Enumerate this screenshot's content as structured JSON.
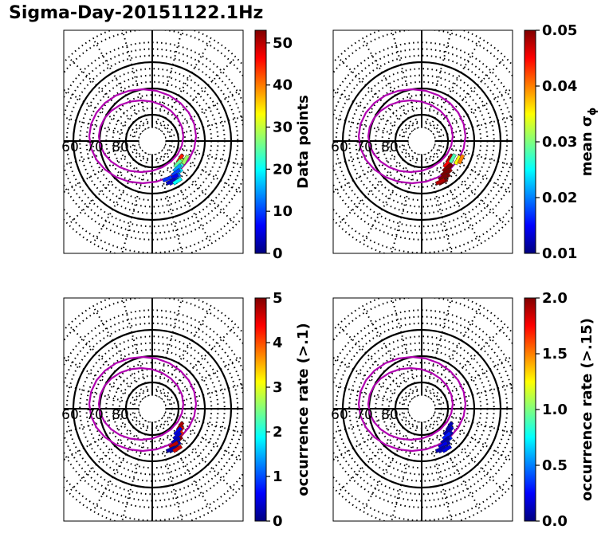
{
  "title": "Sigma-Day-20151122.1Hz",
  "chart_data": [
    {
      "type": "polar-map",
      "position": "top-left",
      "lat_labels": [
        "60",
        "70",
        "80"
      ],
      "lat_rings_deg": [
        60,
        70,
        80
      ],
      "colorbar": {
        "label": "Data points",
        "min": 0,
        "max": 53,
        "ticks": [
          "0",
          "10",
          "20",
          "30",
          "40",
          "50"
        ],
        "tick_values": [
          0,
          10,
          20,
          30,
          40,
          50
        ],
        "colormap": "jet"
      },
      "cells": [
        {
          "mlt": 1.2,
          "lat": 77.5,
          "value": 45
        },
        {
          "mlt": 1.6,
          "lat": 76.5,
          "value": 30
        },
        {
          "mlt": 2.0,
          "lat": 75.5,
          "value": 22
        },
        {
          "mlt": 2.4,
          "lat": 74.5,
          "value": 18
        },
        {
          "mlt": 2.8,
          "lat": 73.5,
          "value": 12
        },
        {
          "mlt": 3.2,
          "lat": 72.5,
          "value": 8
        },
        {
          "mlt": 1.8,
          "lat": 77.0,
          "value": 25
        },
        {
          "mlt": 2.2,
          "lat": 76.0,
          "value": 15
        },
        {
          "mlt": 2.6,
          "lat": 75.0,
          "value": 10
        },
        {
          "mlt": 3.0,
          "lat": 74.0,
          "value": 6
        },
        {
          "mlt": 3.4,
          "lat": 73.0,
          "value": 4
        },
        {
          "mlt": 2.9,
          "lat": 72.0,
          "value": 20
        },
        {
          "mlt": 3.6,
          "lat": 74.5,
          "value": 9
        },
        {
          "mlt": 1.0,
          "lat": 75.5,
          "value": 28
        }
      ]
    },
    {
      "type": "polar-map",
      "position": "top-right",
      "lat_labels": [
        "60",
        "70",
        "80"
      ],
      "lat_rings_deg": [
        60,
        70,
        80
      ],
      "colorbar": {
        "label": "mean σ",
        "label_subscript": "ϕ",
        "min": 0.01,
        "max": 0.05,
        "ticks": [
          "0.01",
          "0.02",
          "0.03",
          "0.04",
          "0.05"
        ],
        "tick_values": [
          0.01,
          0.02,
          0.03,
          0.04,
          0.05
        ],
        "colormap": "jet"
      },
      "cells": [
        {
          "mlt": 1.2,
          "lat": 77.5,
          "value": 0.048
        },
        {
          "mlt": 1.6,
          "lat": 76.5,
          "value": 0.05
        },
        {
          "mlt": 2.0,
          "lat": 75.5,
          "value": 0.05
        },
        {
          "mlt": 2.4,
          "lat": 74.5,
          "value": 0.049
        },
        {
          "mlt": 2.8,
          "lat": 73.5,
          "value": 0.05
        },
        {
          "mlt": 3.2,
          "lat": 72.5,
          "value": 0.05
        },
        {
          "mlt": 1.8,
          "lat": 77.0,
          "value": 0.045
        },
        {
          "mlt": 2.2,
          "lat": 76.0,
          "value": 0.05
        },
        {
          "mlt": 2.6,
          "lat": 75.0,
          "value": 0.05
        },
        {
          "mlt": 3.0,
          "lat": 74.0,
          "value": 0.05
        },
        {
          "mlt": 3.4,
          "lat": 73.0,
          "value": 0.048
        },
        {
          "mlt": 0.9,
          "lat": 74.5,
          "value": 0.035
        },
        {
          "mlt": 0.7,
          "lat": 73.5,
          "value": 0.04
        },
        {
          "mlt": 1.0,
          "lat": 76.5,
          "value": 0.028
        }
      ]
    },
    {
      "type": "polar-map",
      "position": "bottom-left",
      "lat_labels": [
        "60",
        "70",
        "80"
      ],
      "lat_rings_deg": [
        60,
        70,
        80
      ],
      "colorbar": {
        "label": "occurrence rate (>.1)",
        "min": 0,
        "max": 5,
        "ticks": [
          "0",
          "1",
          "2",
          "3",
          "4",
          "5"
        ],
        "tick_values": [
          0,
          1,
          2,
          3,
          4,
          5
        ],
        "colormap": "jet"
      },
      "cells": [
        {
          "mlt": 1.2,
          "lat": 77.5,
          "value": 4.8
        },
        {
          "mlt": 1.6,
          "lat": 76.5,
          "value": 4.5
        },
        {
          "mlt": 2.0,
          "lat": 75.5,
          "value": 4.2
        },
        {
          "mlt": 2.4,
          "lat": 74.5,
          "value": 4.9
        },
        {
          "mlt": 2.8,
          "lat": 73.5,
          "value": 0.3
        },
        {
          "mlt": 3.2,
          "lat": 72.5,
          "value": 0.2
        },
        {
          "mlt": 1.8,
          "lat": 77.0,
          "value": 0.5
        },
        {
          "mlt": 2.2,
          "lat": 76.0,
          "value": 0.4
        },
        {
          "mlt": 2.6,
          "lat": 75.0,
          "value": 0.3
        },
        {
          "mlt": 3.0,
          "lat": 74.0,
          "value": 4.7
        },
        {
          "mlt": 3.4,
          "lat": 73.0,
          "value": 0.2
        },
        {
          "mlt": 2.9,
          "lat": 72.0,
          "value": 4.6
        }
      ]
    },
    {
      "type": "polar-map",
      "position": "bottom-right",
      "lat_labels": [
        "60",
        "70",
        "80"
      ],
      "lat_rings_deg": [
        60,
        70,
        80
      ],
      "colorbar": {
        "label": "occurrence rate (>.15)",
        "min": 0,
        "max": 2,
        "ticks": [
          "0.0",
          "0.5",
          "1.0",
          "1.5",
          "2.0"
        ],
        "tick_values": [
          0,
          0.5,
          1.0,
          1.5,
          2.0
        ],
        "colormap": "jet"
      },
      "cells": [
        {
          "mlt": 1.2,
          "lat": 77.5,
          "value": 0.1
        },
        {
          "mlt": 1.6,
          "lat": 76.5,
          "value": 0.2
        },
        {
          "mlt": 2.0,
          "lat": 75.5,
          "value": 0.1
        },
        {
          "mlt": 2.4,
          "lat": 74.5,
          "value": 0.3
        },
        {
          "mlt": 2.8,
          "lat": 73.5,
          "value": 0.1
        },
        {
          "mlt": 3.2,
          "lat": 72.5,
          "value": 0.2
        },
        {
          "mlt": 1.8,
          "lat": 77.0,
          "value": 0.1
        },
        {
          "mlt": 2.2,
          "lat": 76.0,
          "value": 0.3
        },
        {
          "mlt": 2.6,
          "lat": 75.0,
          "value": 0.1
        },
        {
          "mlt": 3.0,
          "lat": 74.0,
          "value": 0.2
        },
        {
          "mlt": 3.4,
          "lat": 73.0,
          "value": 0.1
        },
        {
          "mlt": 2.9,
          "lat": 72.0,
          "value": 0.2
        }
      ]
    }
  ],
  "colors": {
    "grid": "#000000",
    "oval": "#b000b0",
    "background": "#ffffff"
  }
}
